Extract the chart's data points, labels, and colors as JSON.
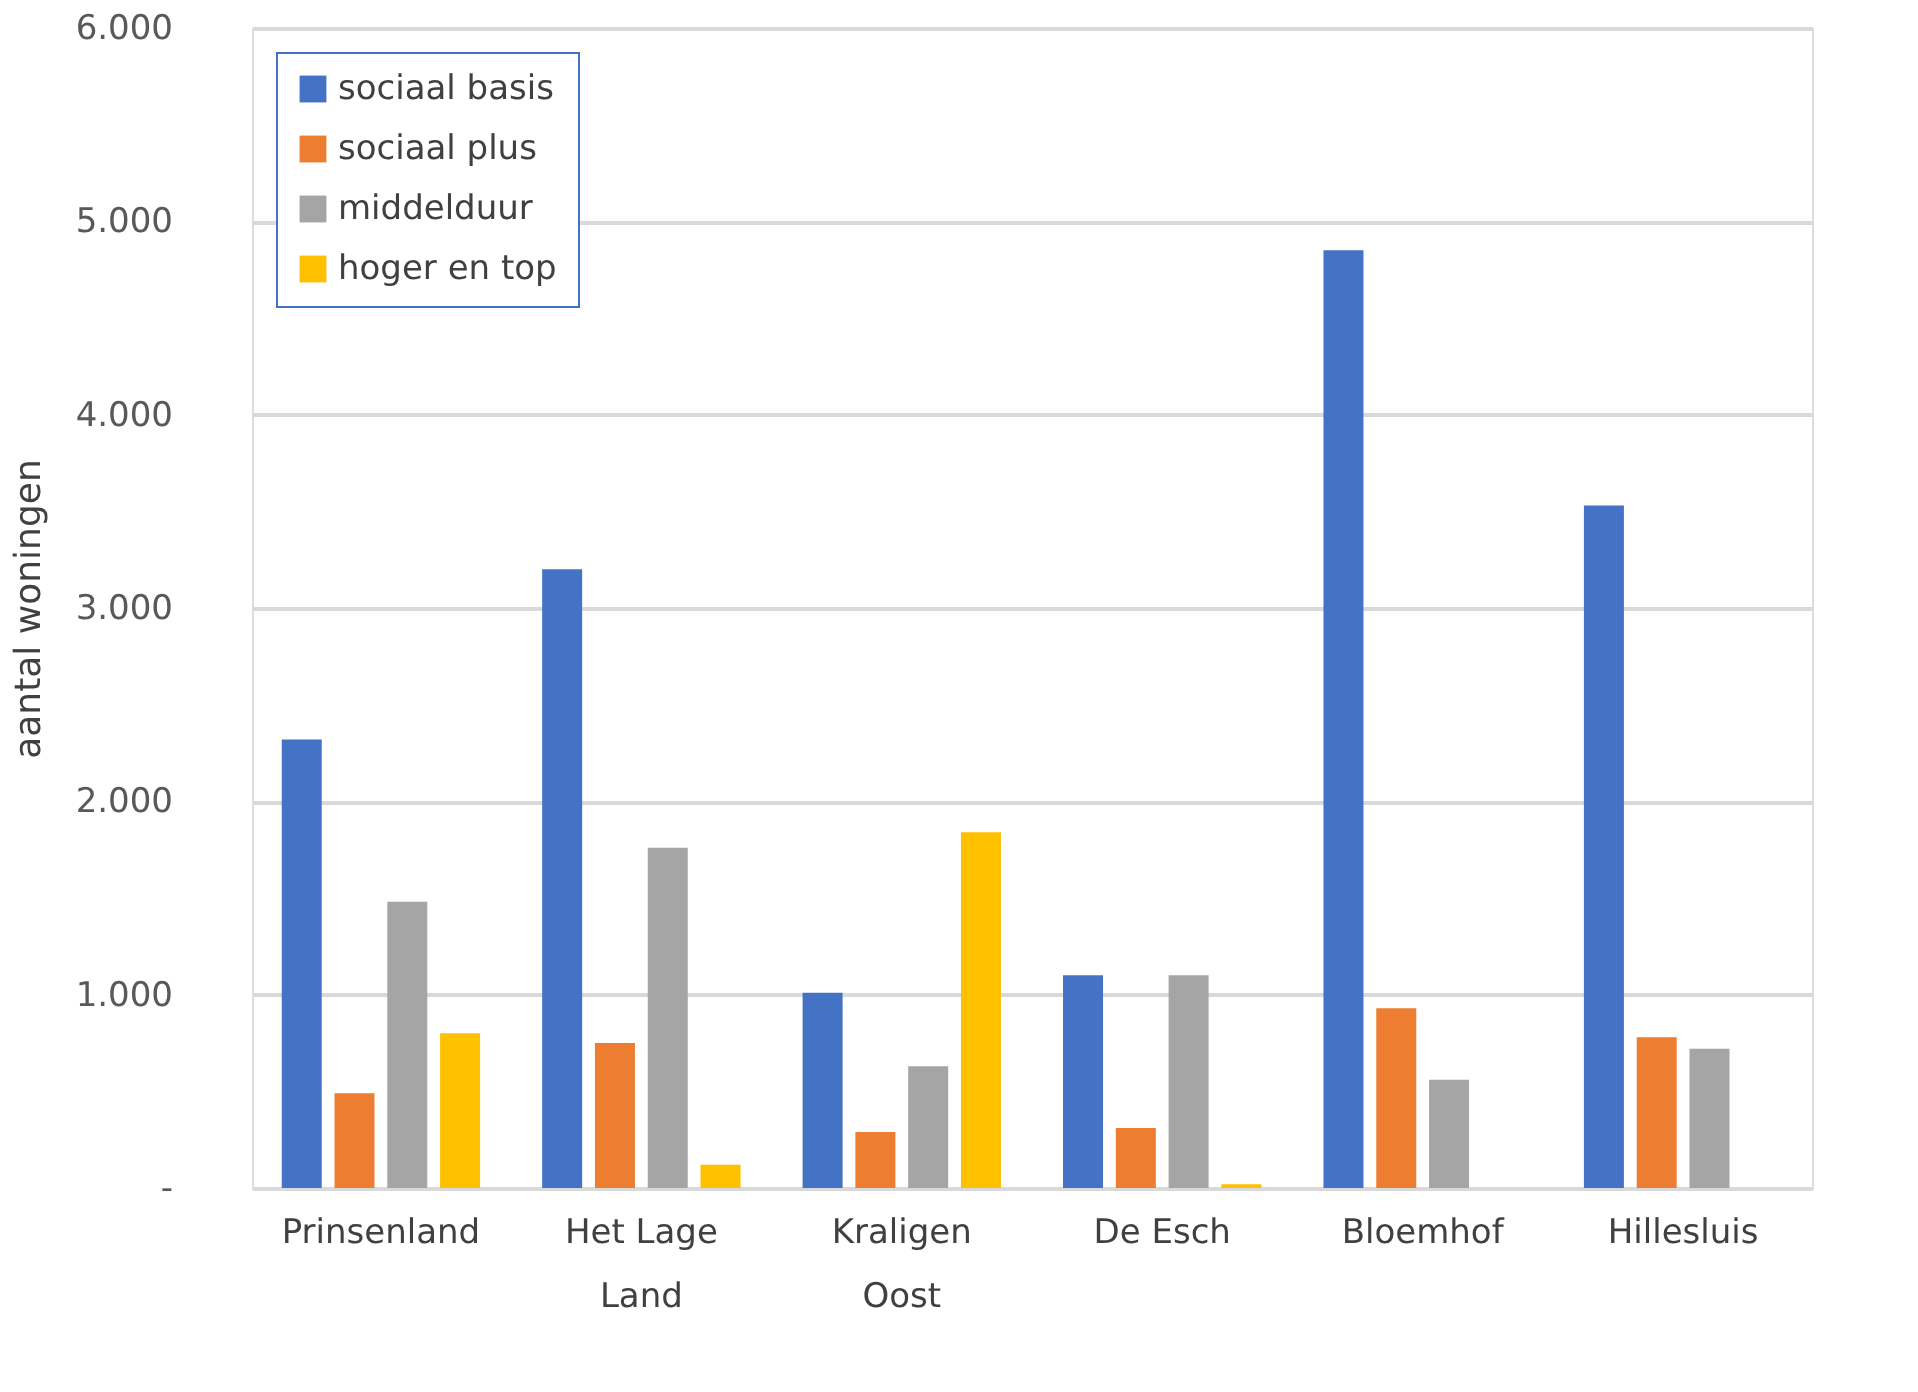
{
  "chart_data": {
    "type": "bar",
    "ylabel": "aantal woningen",
    "categories": [
      "Prinsenland",
      "Het Lage Land",
      "Kraligen Oost",
      "De Esch",
      "Bloemhof",
      "Hillesluis"
    ],
    "series": [
      {
        "name": "sociaal basis",
        "color": "#4472c4",
        "values": [
          2320,
          3200,
          1010,
          1100,
          4850,
          3530
        ]
      },
      {
        "name": "sociaal plus",
        "color": "#ed7d31",
        "values": [
          490,
          750,
          290,
          310,
          930,
          780
        ]
      },
      {
        "name": "middelduur",
        "color": "#a5a5a5",
        "values": [
          1480,
          1760,
          630,
          1100,
          560,
          720
        ]
      },
      {
        "name": "hoger en top",
        "color": "#ffc000",
        "values": [
          800,
          120,
          1840,
          20,
          null,
          null
        ]
      }
    ],
    "ylim": [
      0,
      6000
    ],
    "yticks": [
      {
        "value": 0,
        "label": "-"
      },
      {
        "value": 1000,
        "label": "1.000"
      },
      {
        "value": 2000,
        "label": "2.000"
      },
      {
        "value": 3000,
        "label": "3.000"
      },
      {
        "value": 4000,
        "label": "4.000"
      },
      {
        "value": 5000,
        "label": "5.000"
      },
      {
        "value": 6000,
        "label": "6.000"
      }
    ],
    "grid": "y",
    "legend": "top left"
  }
}
